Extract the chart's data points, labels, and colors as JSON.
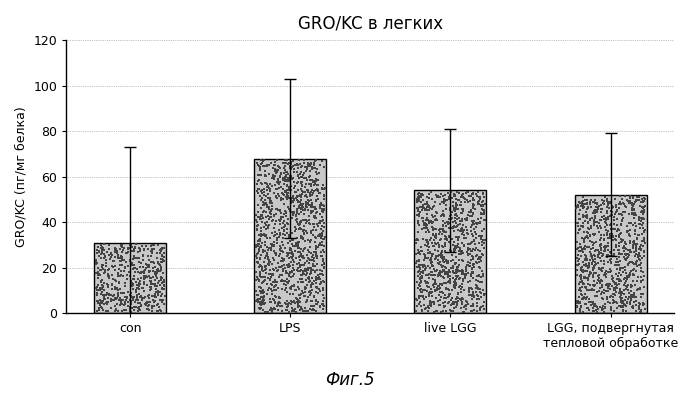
{
  "title": "GRO/KC в легких",
  "ylabel": "GRO/KC (пг/мг белка)",
  "categories": [
    "con",
    "LPS",
    "live LGG",
    "LGG, подвергнутая\nтепловой обработке"
  ],
  "values": [
    31,
    68,
    54,
    52
  ],
  "errors_up": [
    42,
    35,
    27,
    27
  ],
  "errors_down": [
    31,
    35,
    27,
    27
  ],
  "ylim": [
    0,
    120
  ],
  "yticks": [
    0,
    20,
    40,
    60,
    80,
    100,
    120
  ],
  "bar_color": "#c8c8c8",
  "bar_edge_color": "#000000",
  "fig_width": 7.0,
  "fig_height": 3.93,
  "dpi": 100,
  "caption": "Фиг.5",
  "background_color": "#ffffff"
}
